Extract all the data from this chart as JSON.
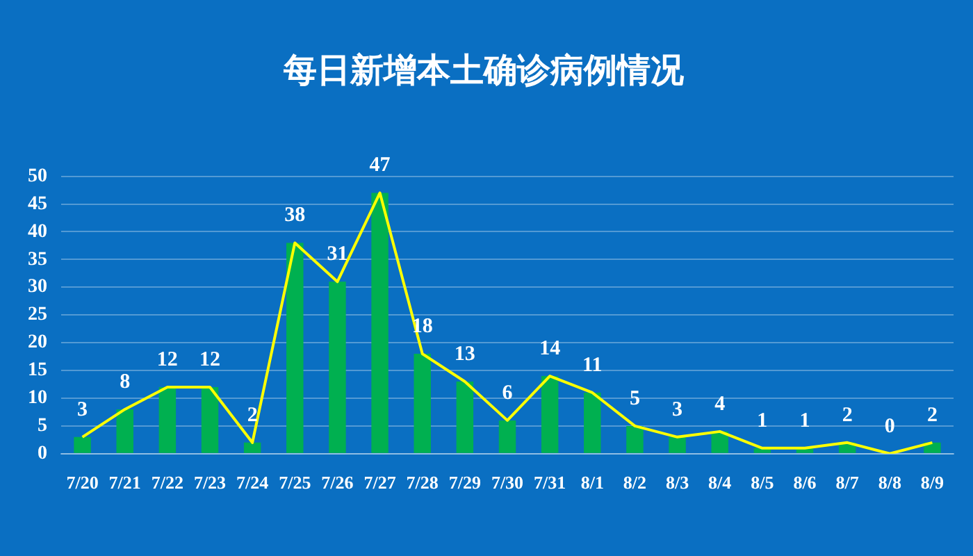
{
  "chart_data": {
    "type": "bar",
    "title": "每日新增本土确诊病例情况",
    "categories": [
      "7/20",
      "7/21",
      "7/22",
      "7/23",
      "7/24",
      "7/25",
      "7/26",
      "7/27",
      "7/28",
      "7/29",
      "7/30",
      "7/31",
      "8/1",
      "8/2",
      "8/3",
      "8/4",
      "8/5",
      "8/6",
      "8/7",
      "8/8",
      "8/9"
    ],
    "series": [
      {
        "color": "#00b050",
        "values": [
          3,
          8,
          12,
          12,
          2,
          38,
          31,
          47,
          18,
          13,
          6,
          14,
          11,
          5,
          3,
          4,
          1,
          1,
          2,
          0,
          2
        ]
      },
      {
        "type": "line",
        "color": "#ffff00",
        "marker": "none",
        "data_labels": true,
        "values": [
          3,
          8,
          12,
          12,
          2,
          38,
          31,
          47,
          18,
          13,
          6,
          14,
          11,
          5,
          3,
          4,
          1,
          1,
          2,
          0,
          2
        ]
      }
    ],
    "ylim": [
      0,
      50
    ],
    "yticks": [
      0,
      5,
      10,
      15,
      20,
      25,
      30,
      35,
      40,
      45,
      50
    ],
    "grid": "y",
    "legend": false
  }
}
